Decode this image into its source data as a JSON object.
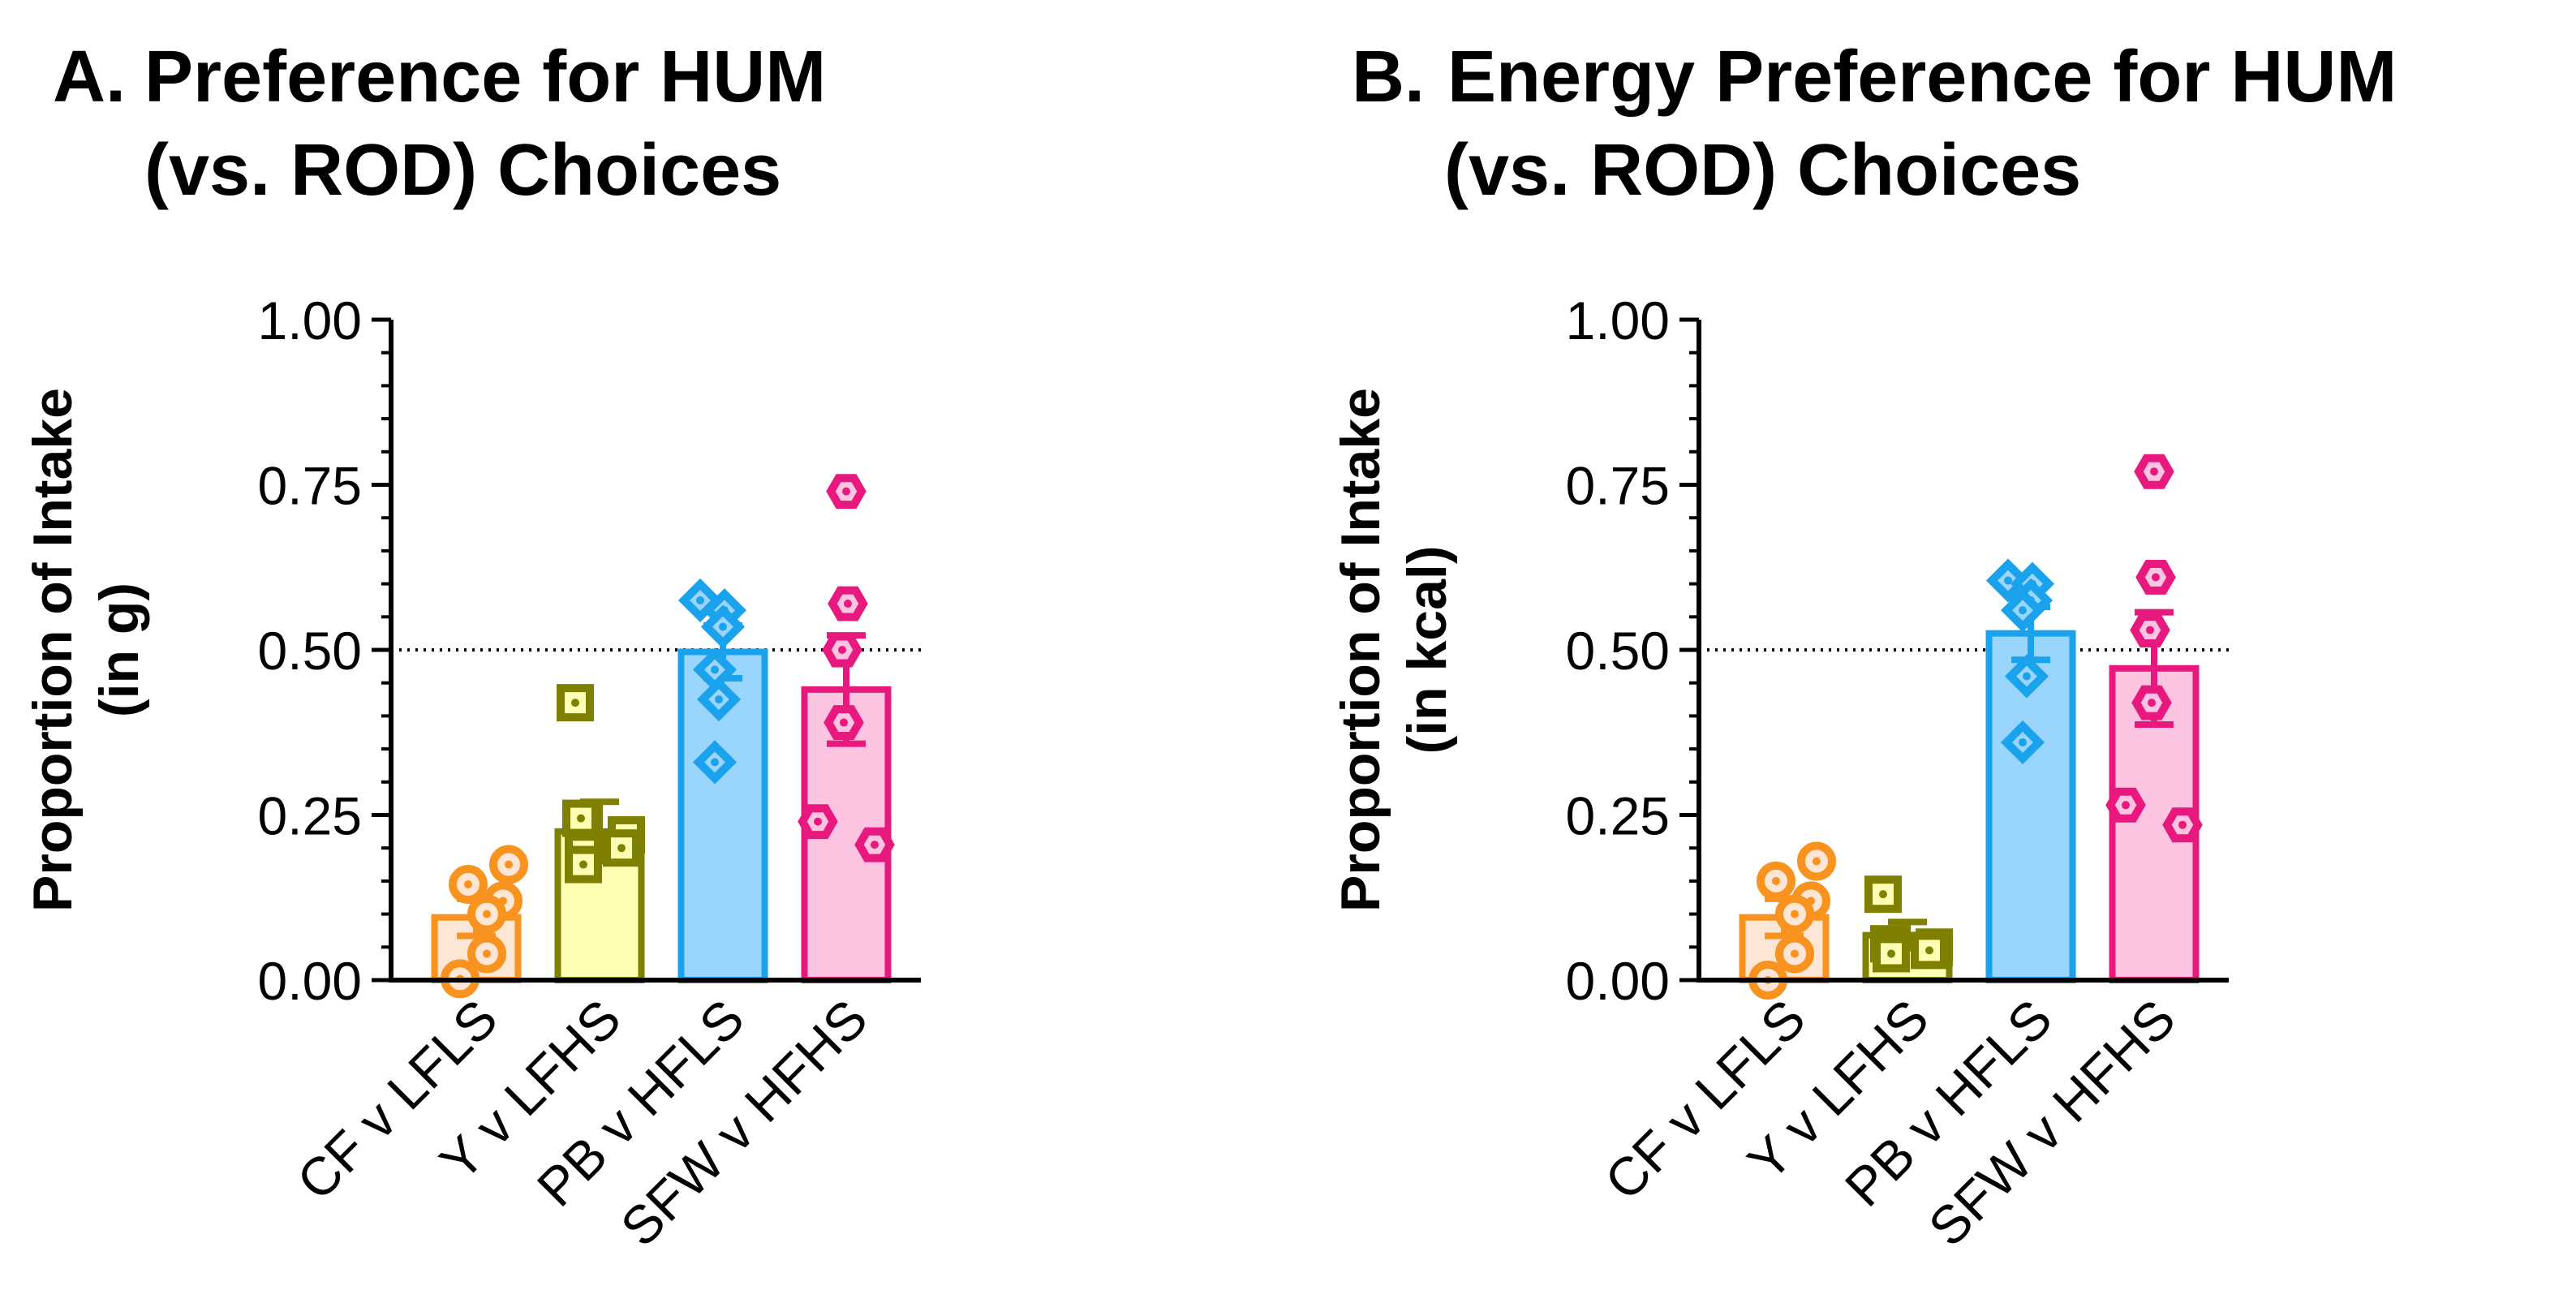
{
  "chart_data": [
    {
      "type": "bar",
      "panel_letter": "A.",
      "title_line1": "Preference for HUM",
      "title_line2": "(vs. ROD) Choices",
      "ylabel_line1": "Proportion of Intake",
      "ylabel_line2": "(in g)",
      "ylim": [
        0,
        1
      ],
      "yticks": [
        "0.00",
        "0.25",
        "0.50",
        "0.75",
        "1.00"
      ],
      "reference_line": 0.5,
      "categories": [
        "CF v LFLS",
        "Y v LFHS",
        "PB v HFLS",
        "SFW v HFHS"
      ],
      "values": [
        0.095,
        0.225,
        0.497,
        0.44
      ],
      "sem": [
        0.028,
        0.045,
        0.04,
        0.082
      ],
      "points": [
        [
          0.175,
          0.145,
          0.12,
          0.1,
          0.04,
          0.002
        ],
        [
          0.42,
          0.245,
          0.22,
          0.2,
          0.195,
          0.175
        ],
        [
          0.575,
          0.56,
          0.535,
          0.47,
          0.425,
          0.33
        ],
        [
          0.74,
          0.57,
          0.5,
          0.39,
          0.24,
          0.205
        ]
      ]
    },
    {
      "type": "bar",
      "panel_letter": "B.",
      "title_line1": "Energy Preference for HUM",
      "title_line2": "(vs. ROD) Choices",
      "ylabel_line1": "Proportion of Intake",
      "ylabel_line2": "(in kcal)",
      "ylim": [
        0,
        1
      ],
      "yticks": [
        "0.00",
        "0.25",
        "0.50",
        "0.75",
        "1.00"
      ],
      "reference_line": 0.5,
      "categories": [
        "CF v LFLS",
        "Y v LFHS",
        "PB v HFLS",
        "SFW v HFHS"
      ],
      "values": [
        0.095,
        0.068,
        0.525,
        0.472
      ],
      "sem": [
        0.028,
        0.02,
        0.04,
        0.085
      ],
      "points": [
        [
          0.18,
          0.15,
          0.12,
          0.1,
          0.04,
          0.0
        ],
        [
          0.13,
          0.055,
          0.05,
          0.045,
          0.045,
          0.04
        ],
        [
          0.605,
          0.6,
          0.575,
          0.56,
          0.46,
          0.36
        ],
        [
          0.77,
          0.61,
          0.53,
          0.42,
          0.265,
          0.235
        ]
      ]
    }
  ],
  "colors": {
    "series_stroke": [
      "#F7931E",
      "#808000",
      "#1AA2EC",
      "#E8197E"
    ],
    "series_fill": [
      "#FDE6D6",
      "#FFFFB3",
      "#99D5FD",
      "#FCC4E1"
    ],
    "axis": "#000000"
  }
}
